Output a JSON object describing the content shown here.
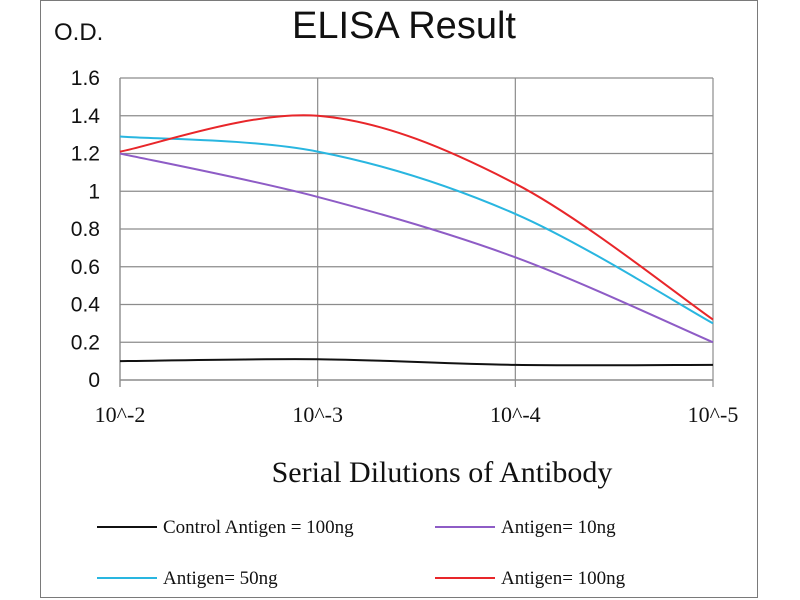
{
  "chart_data": {
    "type": "line",
    "title": "ELISA Result",
    "ylabel": "O.D.",
    "xlabel": "Serial Dilutions  of Antibody",
    "categories": [
      "10^-2",
      "10^-3",
      "10^-4",
      "10^-5"
    ],
    "ylim": [
      0,
      1.6
    ],
    "yticks": [
      "0",
      "0.2",
      "0.4",
      "0.6",
      "0.8",
      "1",
      "1.2",
      "1.4",
      "1.6"
    ],
    "grid": true,
    "legend_position": "bottom",
    "series": [
      {
        "name": "Control Antigen = 100ng",
        "color": "#111111",
        "values": [
          0.1,
          0.11,
          0.08,
          0.08
        ]
      },
      {
        "name": "Antigen= 10ng",
        "color": "#8e5cc6",
        "values": [
          1.2,
          0.97,
          0.65,
          0.2
        ]
      },
      {
        "name": "Antigen= 50ng",
        "color": "#29b6e0",
        "values": [
          1.29,
          1.21,
          0.88,
          0.3
        ]
      },
      {
        "name": "Antigen= 100ng",
        "color": "#e8262a",
        "values": [
          1.21,
          1.4,
          1.04,
          0.32
        ]
      }
    ]
  }
}
